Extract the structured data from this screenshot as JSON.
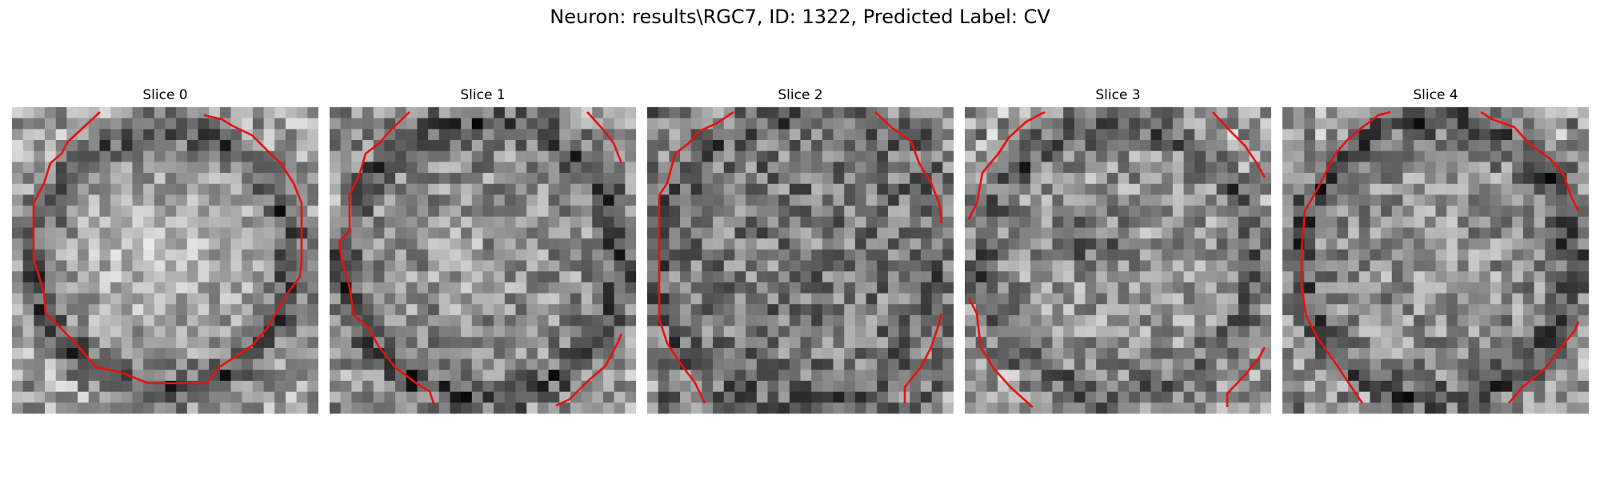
{
  "figure": {
    "title": "Neuron: results\\RGC7, ID: 1322, Predicted Label: CV"
  },
  "slices": [
    {
      "label": "Slice 0",
      "brightness": "bright",
      "contour_color": "#e81010"
    },
    {
      "label": "Slice 1",
      "brightness": "mid",
      "contour_color": "#e81010"
    },
    {
      "label": "Slice 2",
      "brightness": "mid-dark",
      "contour_color": "#e81010"
    },
    {
      "label": "Slice 3",
      "brightness": "mixed",
      "contour_color": "#e81010"
    },
    {
      "label": "Slice 4",
      "brightness": "mid",
      "contour_color": "#e81010"
    }
  ],
  "colors": {
    "contour": "#e81010",
    "colormap": "gray"
  }
}
